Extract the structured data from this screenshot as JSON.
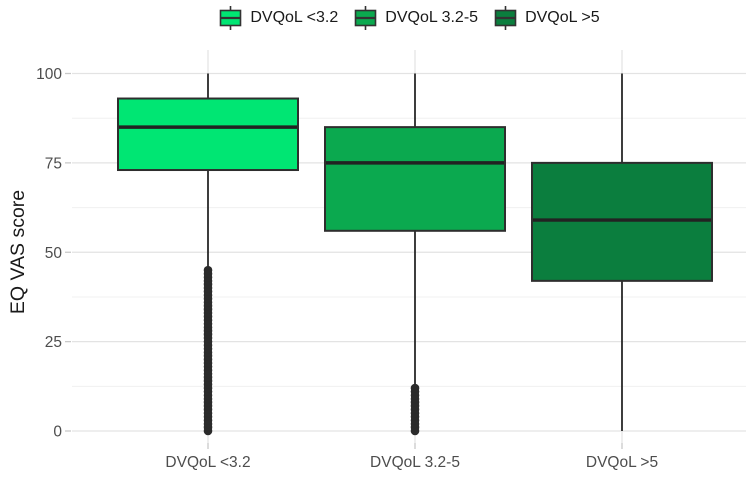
{
  "chart_data": {
    "type": "boxplot",
    "title": "",
    "ylabel": "EQ VAS score",
    "xlabel": "",
    "ylim": [
      0,
      100
    ],
    "y_major_ticks": [
      0,
      25,
      50,
      75,
      100
    ],
    "y_minor_gridlines": [
      12.5,
      37.5,
      62.5,
      87.5
    ],
    "grid": "horizontal major+minor gridlines, vertical gridline at each category, no axis lines",
    "legend_position": "top-center",
    "categories": [
      "DVQoL <3.2",
      "DVQoL 3.2-5",
      "DVQoL >5"
    ],
    "series": [
      {
        "label": "DVQoL <3.2",
        "color": "#00E673",
        "box": {
          "whisker_low": 45,
          "q1": 73,
          "median": 85,
          "q3": 93,
          "whisker_high": 100
        },
        "outliers": {
          "min": 0,
          "max": 45,
          "step": 1
        }
      },
      {
        "label": "DVQoL 3.2-5",
        "color": "#0BA94F",
        "box": {
          "whisker_low": 12,
          "q1": 56,
          "median": 75,
          "q3": 85,
          "whisker_high": 100
        },
        "outliers": {
          "min": 0,
          "max": 12,
          "step": 1
        }
      },
      {
        "label": "DVQoL >5",
        "color": "#0B7E3E",
        "box": {
          "whisker_low": 0,
          "q1": 42,
          "median": 59,
          "q3": 75,
          "whisker_high": 100
        },
        "outliers": null
      }
    ],
    "style_colors": {
      "grid_major": "#E3E3E3",
      "grid_minor": "#F0F0F0",
      "tick_mark": "#C9C9C9",
      "tick_text": "#4D4D4D",
      "axis_title_text": "#1A1A1A",
      "box_border": "#2E2E2E",
      "median_line": "#222222",
      "whisker": "#1C1C1C",
      "outlier": "#2B2B2B",
      "background": "#FFFFFF"
    }
  }
}
